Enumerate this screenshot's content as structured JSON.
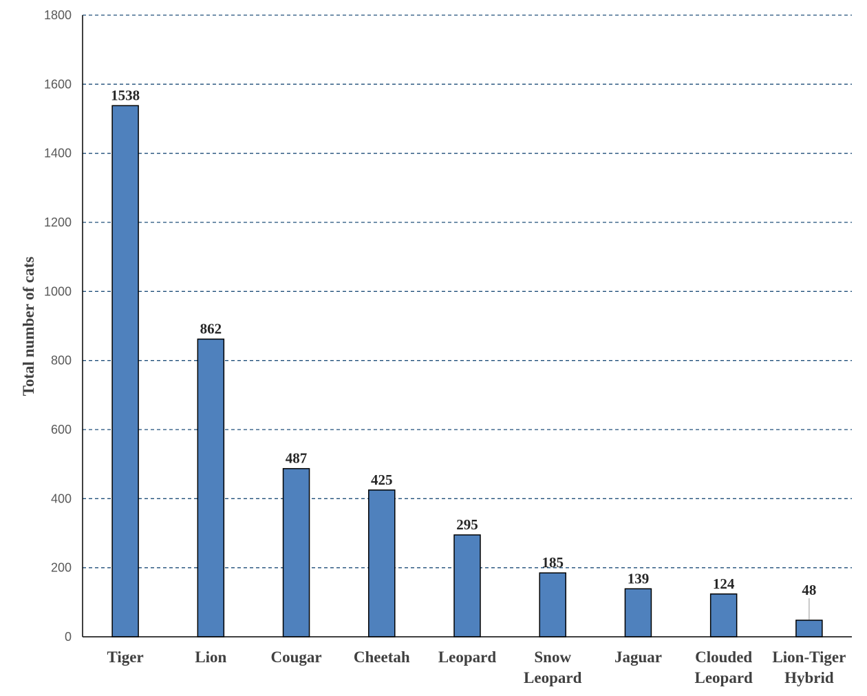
{
  "chart_data": {
    "type": "bar",
    "title": "",
    "xlabel": "",
    "ylabel": "Total number of cats",
    "ylim": [
      0,
      1800
    ],
    "yticks": [
      0,
      200,
      400,
      600,
      800,
      1000,
      1200,
      1400,
      1600,
      1800
    ],
    "grid": true,
    "grid_style": "dashed",
    "legend": "none",
    "categories": [
      "Tiger",
      "Lion",
      "Cougar",
      "Cheetah",
      "Leopard",
      "Snow Leopard",
      "Jaguar",
      "Clouded Leopard",
      "Lion-Tiger Hybrid"
    ],
    "category_lines": [
      [
        "Tiger"
      ],
      [
        "Lion"
      ],
      [
        "Cougar"
      ],
      [
        "Cheetah"
      ],
      [
        "Leopard"
      ],
      [
        "Snow",
        "Leopard"
      ],
      [
        "Jaguar"
      ],
      [
        "Clouded",
        "Leopard"
      ],
      [
        "Lion-Tiger",
        "Hybrid"
      ]
    ],
    "values": [
      1538,
      862,
      487,
      425,
      295,
      185,
      139,
      124,
      48
    ],
    "data_labels": [
      "1538",
      "862",
      "487",
      "425",
      "295",
      "185",
      "139",
      "124",
      "48"
    ],
    "colors": {
      "bar_fill": "#4F81BD",
      "bar_stroke": "#000000",
      "grid": "#1F4E79",
      "axis": "#000000",
      "leader": "#A6A6A6"
    }
  }
}
